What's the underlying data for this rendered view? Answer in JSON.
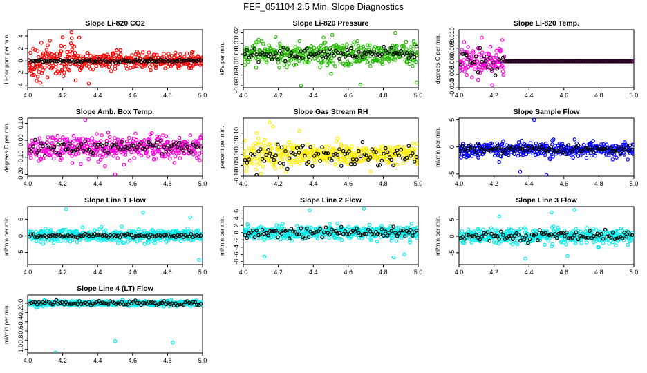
{
  "page_title": "FEF_051104  2.5 Min. Slope Diagnostics",
  "chart_data": [
    {
      "type": "scatter",
      "title": "Slope Li-820 CO2",
      "ylabel": "Li-cor ppm per min.",
      "color": "#ff0000",
      "xlim": [
        4.0,
        5.0
      ],
      "ylim": [
        -4.3,
        5.0
      ],
      "xticks": [
        4.0,
        4.2,
        4.4,
        4.6,
        4.8,
        5.0
      ],
      "xtick_labels": [
        "4.0",
        "4.2",
        "4.4",
        "4.6",
        "4.8",
        "5.0"
      ],
      "yticks": [
        -4,
        -2,
        0,
        2,
        4
      ],
      "ytick_labels": [
        "-4",
        "-2",
        "0",
        "2",
        "4"
      ],
      "center": 0.0,
      "spread": 0.9,
      "early_spread": 2.0,
      "black_center": 0.0,
      "black_spread": 0.15,
      "outliers": [
        [
          4.25,
          4.6
        ],
        [
          4.2,
          3.8
        ],
        [
          4.35,
          -3.6
        ],
        [
          4.16,
          -2.0
        ]
      ]
    },
    {
      "type": "scatter",
      "title": "Slope Li-820 Pressure",
      "ylabel": "kPa per min.",
      "color": "#22bb00",
      "xlim": [
        4.0,
        5.0
      ],
      "ylim": [
        -0.032,
        0.023
      ],
      "xticks": [
        4.0,
        4.2,
        4.4,
        4.6,
        4.8,
        5.0
      ],
      "xtick_labels": [
        "4.0",
        "4.2",
        "4.4",
        "4.6",
        "4.8",
        "5.0"
      ],
      "yticks": [
        -0.03,
        -0.02,
        -0.01,
        0.0,
        0.01,
        0.02
      ],
      "ytick_labels": [
        "-0.03",
        "-0.02",
        "-0.01",
        "0.00",
        "0.01",
        "0.02"
      ],
      "center": 0.0,
      "spread": 0.008,
      "early_spread": 0.008,
      "black_center": 0.0,
      "black_spread": 0.004,
      "outliers": [
        [
          4.33,
          -0.03
        ],
        [
          4.67,
          -0.029
        ],
        [
          4.99,
          -0.027
        ],
        [
          4.87,
          0.02
        ]
      ]
    },
    {
      "type": "scatter",
      "title": "Slope Li-820 Temp.",
      "ylabel": "degrees C per min.",
      "color": "#ff00dd",
      "xlim": [
        4.0,
        5.0
      ],
      "ylim": [
        -0.01,
        0.012
      ],
      "xticks": [
        4.0,
        4.2,
        4.4,
        4.6,
        4.8,
        5.0
      ],
      "xtick_labels": [
        "4.0",
        "4.2",
        "4.4",
        "4.6",
        "4.8",
        "5.0"
      ],
      "yticks": [
        -0.01,
        -0.005,
        0.0,
        0.005,
        0.01
      ],
      "ytick_labels": [
        "-0.010",
        "-0.005",
        "0.000",
        "0.005",
        "0.010"
      ],
      "center": 0.0,
      "spread": 0.0,
      "early_spread": 0.004,
      "early_until": 4.26,
      "black_center": 0.0,
      "black_spread": 0.0,
      "outliers": [
        [
          4.13,
          0.009
        ],
        [
          4.19,
          -0.009
        ],
        [
          4.11,
          -0.007
        ]
      ]
    },
    {
      "type": "scatter",
      "title": "Slope Amb. Box Temp.",
      "ylabel": "degrees C per min.",
      "color": "#ff00dd",
      "xlim": [
        4.0,
        5.0
      ],
      "ylim": [
        -0.21,
        0.13
      ],
      "xticks": [
        4.0,
        4.2,
        4.4,
        4.6,
        4.8,
        5.0
      ],
      "xtick_labels": [
        "4.0",
        "4.2",
        "4.4",
        "4.6",
        "4.8",
        "5.0"
      ],
      "yticks": [
        -0.2,
        -0.1,
        0.0,
        0.1
      ],
      "ytick_labels": [
        "-0.20",
        "-0.10",
        "0.00",
        "0.10"
      ],
      "center": -0.04,
      "spread": 0.05,
      "early_spread": 0.05,
      "black_center": -0.04,
      "black_spread": 0.025,
      "outliers": [
        [
          4.5,
          -0.2
        ],
        [
          4.33,
          0.12
        ]
      ]
    },
    {
      "type": "scatter",
      "title": "Slope Gas Stream RH",
      "ylabel": "percent per min.",
      "color": "#ffee00",
      "xlim": [
        4.0,
        5.0
      ],
      "ylim": [
        -0.1,
        0.17
      ],
      "xticks": [
        4.0,
        4.2,
        4.4,
        4.6,
        4.8,
        5.0
      ],
      "xtick_labels": [
        "4.0",
        "4.2",
        "4.4",
        "4.6",
        "4.8",
        "5.0"
      ],
      "yticks": [
        -0.1,
        -0.05,
        0.0,
        0.05,
        0.1
      ],
      "ytick_labels": [
        "-0.10",
        "-0.05",
        "0.00",
        "0.05",
        "0.10"
      ],
      "center": 0.0,
      "spread": 0.035,
      "early_spread": 0.05,
      "black_center": 0.0,
      "black_spread": 0.035,
      "outliers": [
        [
          4.15,
          0.15
        ],
        [
          4.17,
          0.13
        ],
        [
          4.32,
          0.11
        ]
      ]
    },
    {
      "type": "scatter",
      "title": "Slope Sample Flow",
      "ylabel": "ml/min per min.",
      "color": "#0000ff",
      "xlim": [
        4.0,
        5.0
      ],
      "ylim": [
        -5.4,
        5.3
      ],
      "xticks": [
        4.0,
        4.2,
        4.4,
        4.6,
        4.8,
        5.0
      ],
      "xtick_labels": [
        "4.0",
        "4.2",
        "4.4",
        "4.6",
        "4.8",
        "5.0"
      ],
      "yticks": [
        -5,
        0,
        5
      ],
      "ytick_labels": [
        "-5",
        "0",
        "5"
      ],
      "center": -0.5,
      "spread": 0.9,
      "early_spread": 0.9,
      "black_center": -0.4,
      "black_spread": 0.5,
      "outliers": [
        [
          4.43,
          5.0
        ],
        [
          4.5,
          -5.2
        ],
        [
          4.35,
          -4.6
        ],
        [
          4.23,
          -2.8
        ]
      ]
    },
    {
      "type": "scatter",
      "title": "Slope Line 1 Flow",
      "ylabel": "ml/min per min.",
      "color": "#00eeee",
      "xlim": [
        4.0,
        5.0
      ],
      "ylim": [
        -8.6,
        8.8
      ],
      "xticks": [
        4.0,
        4.2,
        4.4,
        4.6,
        4.8,
        5.0
      ],
      "xtick_labels": [
        "4.0",
        "4.2",
        "4.4",
        "4.6",
        "4.8",
        "5.0"
      ],
      "yticks": [
        -5,
        0,
        5
      ],
      "ytick_labels": [
        "-5",
        "0",
        "5"
      ],
      "center": 0.0,
      "spread": 1.4,
      "early_spread": 1.4,
      "black_center": 0.0,
      "black_spread": 0.3,
      "outliers": [
        [
          4.22,
          8.0
        ],
        [
          4.66,
          7.0
        ],
        [
          4.98,
          -7.2
        ],
        [
          4.93,
          5.6
        ]
      ]
    },
    {
      "type": "scatter",
      "title": "Slope Line 2 Flow",
      "ylabel": "ml/min per min.",
      "color": "#00eeee",
      "xlim": [
        4.0,
        5.0
      ],
      "ylim": [
        -8.8,
        7.2
      ],
      "xticks": [
        4.0,
        4.2,
        4.4,
        4.6,
        4.8,
        5.0
      ],
      "xtick_labels": [
        "4.0",
        "4.2",
        "4.4",
        "4.6",
        "4.8",
        "5.0"
      ],
      "yticks": [
        -8,
        -6,
        -4,
        -2,
        0,
        2,
        4,
        6
      ],
      "ytick_labels": [
        "-8",
        "-6",
        "-4",
        "-2",
        "0",
        "2",
        "4",
        "6"
      ],
      "center": 0.0,
      "spread": 1.3,
      "early_spread": 1.3,
      "black_center": 0.0,
      "black_spread": 1.0,
      "outliers": [
        [
          4.12,
          -6.6
        ],
        [
          4.92,
          -6.0
        ],
        [
          4.86,
          -6.8
        ],
        [
          4.38,
          6.2
        ],
        [
          4.69,
          6.6
        ]
      ]
    },
    {
      "type": "scatter",
      "title": "Slope Line 3 Flow",
      "ylabel": "ml/min per min.",
      "color": "#00eeee",
      "xlim": [
        4.0,
        5.0
      ],
      "ylim": [
        -8.6,
        9.0
      ],
      "xticks": [
        4.0,
        4.2,
        4.4,
        4.6,
        4.8,
        5.0
      ],
      "xtick_labels": [
        "4.0",
        "4.2",
        "4.4",
        "4.6",
        "4.8",
        "5.0"
      ],
      "yticks": [
        -5,
        0,
        5
      ],
      "ytick_labels": [
        "-5",
        "0",
        "5"
      ],
      "center": 0.0,
      "spread": 1.6,
      "early_spread": 1.6,
      "black_center": 0.0,
      "black_spread": 1.2,
      "outliers": [
        [
          4.38,
          -6.8
        ],
        [
          4.62,
          -6.0
        ],
        [
          4.23,
          6.0
        ],
        [
          4.53,
          7.2
        ],
        [
          4.66,
          8.0
        ]
      ]
    },
    {
      "type": "scatter",
      "title": "Slope Line 4 (LT) Flow",
      "ylabel": "ml/min per min.",
      "color": "#00eeee",
      "xlim": [
        4.0,
        5.0
      ],
      "ylim": [
        -1.08,
        0.18
      ],
      "xticks": [
        4.0,
        4.2,
        4.4,
        4.6,
        4.8,
        5.0
      ],
      "xtick_labels": [
        "4.0",
        "4.2",
        "4.4",
        "4.6",
        "4.8",
        "5.0"
      ],
      "yticks": [
        -1.0,
        -0.8,
        -0.6,
        -0.4,
        -0.2,
        0.0
      ],
      "ytick_labels": [
        "-1.0",
        "-0.8",
        "-0.6",
        "-0.4",
        "-0.2",
        "0.0"
      ],
      "center": 0.0,
      "spread": 0.04,
      "early_spread": 0.04,
      "black_center": 0.0,
      "black_spread": 0.03,
      "outliers": [
        [
          4.5,
          -0.82
        ],
        [
          4.83,
          -0.85
        ],
        [
          4.16,
          -1.07
        ],
        [
          4.05,
          -0.1
        ]
      ]
    }
  ]
}
